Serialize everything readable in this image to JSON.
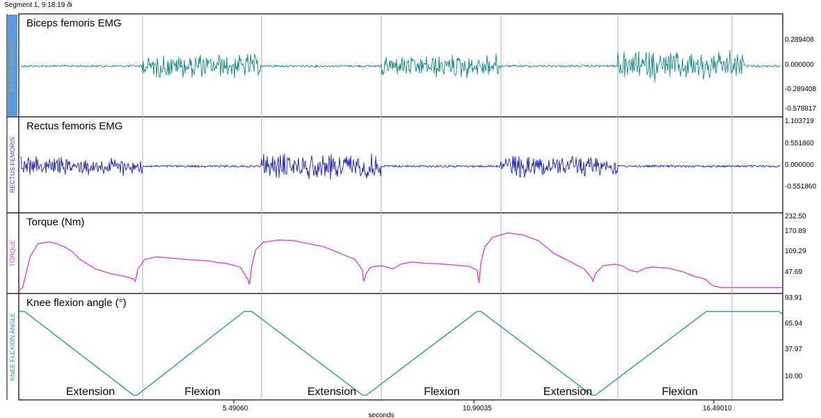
{
  "header": {
    "segment_label": "Segment 1, 9:18:19 ði"
  },
  "chart_data": {
    "type": "line",
    "xlabel": "seconds",
    "x_ticks": [
      "5.49060",
      "10.99035",
      "16.49010"
    ],
    "phase_labels": [
      "Extension",
      "Flexion",
      "Extension",
      "Flexion",
      "Extension",
      "Flexion"
    ],
    "channels": [
      {
        "id": "biceps",
        "title": "Biceps femoris EMG",
        "side_label": "BICEPS FEMORIS",
        "color": "#118a86",
        "label_color": "#7a96b0",
        "signal": "emg",
        "bursts": [
          [
            0,
            0,
            0.02
          ],
          [
            1,
            0,
            0.6
          ],
          [
            2,
            0,
            0.02
          ],
          [
            3,
            0,
            0.6
          ],
          [
            4,
            0,
            0.02
          ],
          [
            5,
            0,
            0.75
          ]
        ],
        "y_ticks": [
          "0.289408",
          "0.000000",
          "-0.289408",
          "-0.578817"
        ],
        "ylim": [
          -0.65,
          0.45
        ]
      },
      {
        "id": "rectus",
        "title": "Rectus femoris EMG",
        "side_label": "RECTUS FEMORIS",
        "color": "#1a22b8",
        "label_color": "#3d4fc8",
        "signal": "emg",
        "bursts": [
          [
            0,
            0,
            0.4
          ],
          [
            1,
            0,
            0.02
          ],
          [
            2,
            0,
            0.55
          ],
          [
            3,
            0,
            0.02
          ],
          [
            4,
            0,
            0.5
          ],
          [
            5,
            0,
            0.02
          ]
        ],
        "y_ticks": [
          "1.103719",
          "0.551860",
          "0.000000",
          "-0.551860"
        ],
        "ylim": [
          -1.0,
          1.15
        ]
      },
      {
        "id": "torque",
        "title": "Torque (Nm)",
        "side_label": "TORQUE",
        "color": "#e040d0",
        "label_color": "#e040d0",
        "signal": "line",
        "y_ticks": [
          "232.50",
          "170.89",
          "109.29",
          "47.69"
        ],
        "ylim": [
          0,
          240
        ],
        "x": [
          0,
          0.3,
          1,
          3,
          5,
          6,
          8,
          10,
          10.4,
          11,
          12,
          14,
          16,
          20,
          24,
          28,
          30,
          30.5,
          31.2,
          33,
          36,
          40,
          46,
          50,
          52,
          54,
          56,
          58,
          60,
          60.4,
          61,
          62,
          64,
          68,
          72,
          76,
          80,
          84,
          88,
          90,
          90.3,
          91,
          92,
          95,
          98,
          100,
          103,
          106,
          110,
          114,
          118,
          120,
          120.5,
          121,
          122,
          124,
          128,
          132,
          136,
          140,
          144,
          148,
          150,
          150.3,
          151,
          153,
          156,
          158,
          160,
          162,
          164,
          166,
          170,
          174,
          177,
          179,
          180,
          181,
          182,
          184,
          188,
          190,
          192,
          194,
          196,
          198,
          200
        ],
        "y": [
          2,
          2,
          10,
          110,
          150,
          152,
          156,
          150,
          148,
          144,
          140,
          125,
          100,
          70,
          55,
          45,
          38,
          30,
          70,
          100,
          108,
          104,
          98,
          95,
          90,
          88,
          82,
          75,
          35,
          20,
          80,
          130,
          155,
          162,
          160,
          150,
          140,
          120,
          100,
          65,
          30,
          55,
          75,
          80,
          70,
          85,
          92,
          88,
          86,
          82,
          78,
          65,
          25,
          90,
          140,
          170,
          185,
          178,
          160,
          120,
          95,
          70,
          40,
          30,
          55,
          80,
          85,
          80,
          65,
          60,
          72,
          76,
          72,
          60,
          45,
          40,
          35,
          22,
          15,
          10,
          10,
          10,
          10,
          10,
          10,
          10,
          10
        ]
      },
      {
        "id": "knee",
        "title": "Knee flexion angle (°)",
        "side_label": "KNEE FLEXION ANGLE",
        "color": "#2a9a92",
        "label_color": "#2a9a92",
        "signal": "line",
        "y_ticks": [
          "93.91",
          "65.94",
          "37.97",
          "10.00"
        ],
        "ylim": [
          0,
          100
        ],
        "x": [
          0,
          1.5,
          30,
          31,
          59,
          60,
          61,
          90,
          91,
          120,
          121,
          150,
          151,
          180,
          181,
          199,
          200
        ],
        "y": [
          85,
          85,
          2,
          2,
          85,
          85,
          85,
          2,
          2,
          85,
          85,
          2,
          2,
          85,
          85,
          85,
          82
        ]
      }
    ]
  }
}
